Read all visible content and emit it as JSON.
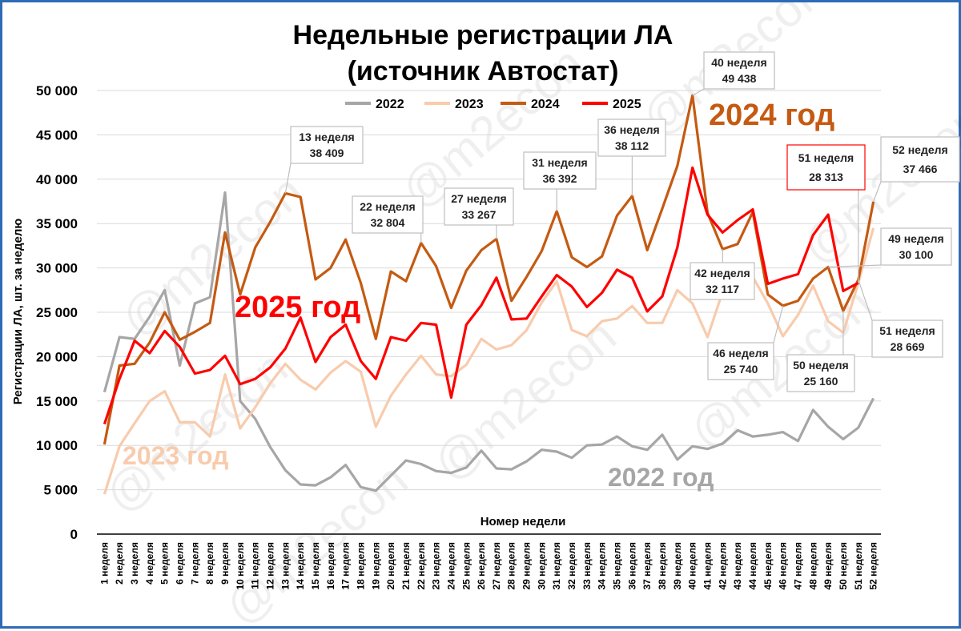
{
  "chart_data": {
    "type": "line",
    "title": [
      "Недельные регистрации ЛА",
      "(источник Автостат)"
    ],
    "xlabel": "Номер недели",
    "ylabel": "Регистрации ЛА, шт. за неделю",
    "ylim": [
      0,
      50000
    ],
    "yticks": [
      0,
      5000,
      10000,
      15000,
      20000,
      25000,
      30000,
      35000,
      40000,
      45000,
      50000
    ],
    "ytick_labels": [
      "0",
      "5 000",
      "10 000",
      "15 000",
      "20 000",
      "25 000",
      "30 000",
      "35 000",
      "40 000",
      "45 000",
      "50 000"
    ],
    "grid": true,
    "legend_position": "top",
    "categories": [
      "1 неделя",
      "2 неделя",
      "3 неделя",
      "4 неделя",
      "5 неделя",
      "6 неделя",
      "7 неделя",
      "8 неделя",
      "9 неделя",
      "10 неделя",
      "11 неделя",
      "12 неделя",
      "13 неделя",
      "14 неделя",
      "15 неделя",
      "16 неделя",
      "17 неделя",
      "18 неделя",
      "19 неделя",
      "20 неделя",
      "21 неделя",
      "22 неделя",
      "23 неделя",
      "24 неделя",
      "25 неделя",
      "26 неделя",
      "27 неделя",
      "28 неделя",
      "29 неделя",
      "30 неделя",
      "31 неделя",
      "32 неделя",
      "33 неделя",
      "34 неделя",
      "35 неделя",
      "36 неделя",
      "37 неделя",
      "38 неделя",
      "39 неделя",
      "40 неделя",
      "41 неделя",
      "42 неделя",
      "43 неделя",
      "44 неделя",
      "45 неделя",
      "46 неделя",
      "47 неделя",
      "48 неделя",
      "49 неделя",
      "50 неделя",
      "51 неделя",
      "52 неделя"
    ],
    "series": [
      {
        "name": "2022",
        "color": "#a6a6a6",
        "big_label": "2022 год",
        "big_label_color": "#a6a6a6",
        "values": [
          16000,
          22200,
          22000,
          24500,
          27500,
          19000,
          26000,
          26700,
          38500,
          15000,
          13000,
          9800,
          7200,
          5600,
          5500,
          6400,
          7800,
          5300,
          4900,
          6600,
          8300,
          7900,
          7100,
          6900,
          7500,
          9400,
          7400,
          7300,
          8200,
          9500,
          9300,
          8600,
          10000,
          10100,
          11000,
          9900,
          9500,
          11200,
          8400,
          9900,
          9600,
          10200,
          11700,
          11000,
          11200,
          11500,
          10500,
          14000,
          12100,
          10700,
          12000,
          15300
        ]
      },
      {
        "name": "2023",
        "color": "#f8cbad",
        "big_label": "2023 год",
        "big_label_color": "#f8cbad",
        "values": [
          4500,
          9900,
          12500,
          15000,
          16100,
          12600,
          12600,
          11000,
          18000,
          11900,
          14300,
          17000,
          19200,
          17400,
          16300,
          18200,
          19500,
          18300,
          12100,
          15600,
          18000,
          20100,
          18000,
          17800,
          19100,
          22000,
          20800,
          21300,
          23000,
          26100,
          28500,
          23000,
          22300,
          24000,
          24300,
          25700,
          23800,
          23800,
          27500,
          26000,
          22200,
          27300,
          27700,
          29000,
          26000,
          22300,
          24700,
          28000,
          24000,
          22700,
          28300,
          34500
        ]
      },
      {
        "name": "2024",
        "color": "#c55a11",
        "big_label": "2024 год",
        "big_label_color": "#c55a11",
        "values": [
          10100,
          19000,
          19200,
          21600,
          25000,
          21900,
          22800,
          23800,
          34000,
          27000,
          32300,
          35200,
          38409,
          38000,
          28700,
          30000,
          33200,
          28300,
          22000,
          29600,
          28500,
          32804,
          30200,
          25500,
          29700,
          32000,
          33267,
          26300,
          29000,
          31900,
          36392,
          31200,
          30100,
          31300,
          35900,
          38112,
          32000,
          36700,
          41500,
          49438,
          36200,
          32117,
          32700,
          36300,
          27000,
          25740,
          26300,
          28800,
          30100,
          25160,
          28669,
          37466
        ]
      },
      {
        "name": "2025",
        "color": "#ff0000",
        "big_label": "2025 год",
        "big_label_color": "#ff0000",
        "values": [
          12400,
          17500,
          21800,
          20400,
          22900,
          21100,
          18100,
          18500,
          20100,
          16900,
          17500,
          18800,
          20900,
          24400,
          19400,
          22200,
          23600,
          19500,
          17500,
          22200,
          21800,
          23800,
          23600,
          15400,
          23600,
          25800,
          28900,
          24200,
          24300,
          26800,
          29200,
          27900,
          25600,
          27200,
          29800,
          28900,
          25100,
          26800,
          32300,
          41300,
          36000,
          34000,
          35400,
          36600,
          28200,
          28800,
          29300,
          33700,
          36000,
          27400,
          28313,
          null
        ]
      }
    ],
    "callouts": [
      {
        "lines": [
          "13 неделя",
          "38 409"
        ],
        "week": 13,
        "series": "2024",
        "color": "#222222"
      },
      {
        "lines": [
          "22 неделя",
          "32 804"
        ],
        "week": 22,
        "series": "2024",
        "color": "#222222"
      },
      {
        "lines": [
          "27 неделя",
          "33 267"
        ],
        "week": 27,
        "series": "2024",
        "color": "#222222"
      },
      {
        "lines": [
          "31 неделя",
          "36 392"
        ],
        "week": 31,
        "series": "2024",
        "color": "#222222"
      },
      {
        "lines": [
          "36 неделя",
          "38 112"
        ],
        "week": 36,
        "series": "2024",
        "color": "#222222"
      },
      {
        "lines": [
          "40 неделя",
          "49 438"
        ],
        "week": 40,
        "series": "2024",
        "color": "#222222"
      },
      {
        "lines": [
          "42 неделя",
          "32 117"
        ],
        "week": 42,
        "series": "2024",
        "color": "#222222"
      },
      {
        "lines": [
          "46 неделя",
          "25 740"
        ],
        "week": 46,
        "series": "2024",
        "color": "#222222"
      },
      {
        "lines": [
          "50 неделя",
          "25 160"
        ],
        "week": 50,
        "series": "2024",
        "color": "#222222"
      },
      {
        "lines": [
          "49 неделя",
          "30 100"
        ],
        "week": 49,
        "series": "2024",
        "color": "#222222"
      },
      {
        "lines": [
          "51 неделя",
          "28 669"
        ],
        "week": 51,
        "series": "2024",
        "color": "#222222"
      },
      {
        "lines": [
          "52 неделя",
          "37 466"
        ],
        "week": 52,
        "series": "2024",
        "color": "#222222"
      },
      {
        "lines": [
          "51 неделя",
          "28 313"
        ],
        "week": 51,
        "series": "2025",
        "color": "#ff0000"
      }
    ],
    "watermark": "@m2econ"
  }
}
